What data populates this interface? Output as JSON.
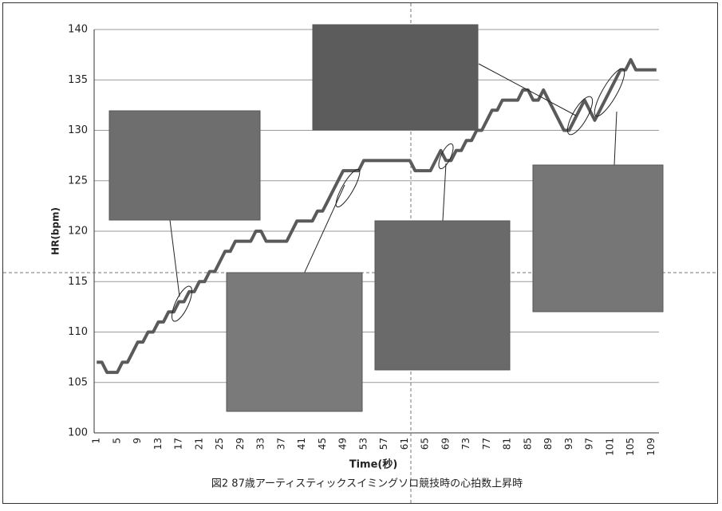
{
  "chart_data": {
    "type": "line",
    "caption": "図2 87歳アーティスティックスイミングソロ競技時の心拍数上昇時",
    "x_label": "Time(秒)",
    "y_label": "HR(bpm)",
    "categories": [
      "1",
      null,
      null,
      null,
      "5",
      null,
      null,
      null,
      "9",
      null,
      null,
      null,
      "13",
      null,
      null,
      null,
      "17",
      null,
      null,
      null,
      "21",
      null,
      null,
      null,
      "25",
      null,
      null,
      null,
      "29",
      null,
      null,
      null,
      "33",
      null,
      null,
      null,
      "37",
      null,
      null,
      null,
      "41",
      null,
      null,
      null,
      "45",
      null,
      null,
      null,
      "49",
      null,
      null,
      null,
      "53",
      null,
      null,
      null,
      "57",
      null,
      null,
      null,
      "61",
      null,
      null,
      null,
      "65",
      null,
      null,
      null,
      "69",
      null,
      null,
      null,
      "73",
      null,
      null,
      null,
      "77",
      null,
      null,
      null,
      "81",
      null,
      null,
      null,
      "85",
      null,
      null,
      null,
      "89",
      null,
      null,
      null,
      "93",
      null,
      null,
      null,
      "97",
      null,
      null,
      null,
      "101",
      null,
      null,
      null,
      "105",
      null,
      null,
      null,
      "109",
      null
    ],
    "values": [
      107,
      107,
      106,
      106,
      106,
      107,
      107,
      108,
      109,
      109,
      110,
      110,
      111,
      111,
      112,
      112,
      113,
      113,
      114,
      114,
      115,
      115,
      116,
      116,
      117,
      118,
      118,
      119,
      119,
      119,
      119,
      120,
      120,
      119,
      119,
      119,
      119,
      119,
      120,
      121,
      121,
      121,
      121,
      122,
      122,
      123,
      124,
      125,
      126,
      126,
      126,
      126,
      127,
      127,
      127,
      127,
      127,
      127,
      127,
      127,
      127,
      127,
      126,
      126,
      126,
      126,
      127,
      128,
      127,
      127,
      128,
      128,
      129,
      129,
      130,
      130,
      131,
      132,
      132,
      133,
      133,
      133,
      133,
      134,
      134,
      133,
      133,
      134,
      133,
      132,
      131,
      130,
      130,
      131,
      132,
      133,
      132,
      131,
      132,
      133,
      134,
      135,
      136,
      136,
      137,
      136,
      136,
      136,
      136,
      136
    ],
    "color": "#5a5a5a",
    "ylim": [
      100,
      140
    ],
    "yticks": [
      100,
      105,
      110,
      115,
      120,
      125,
      130,
      135,
      140
    ],
    "grid": true
  }
}
